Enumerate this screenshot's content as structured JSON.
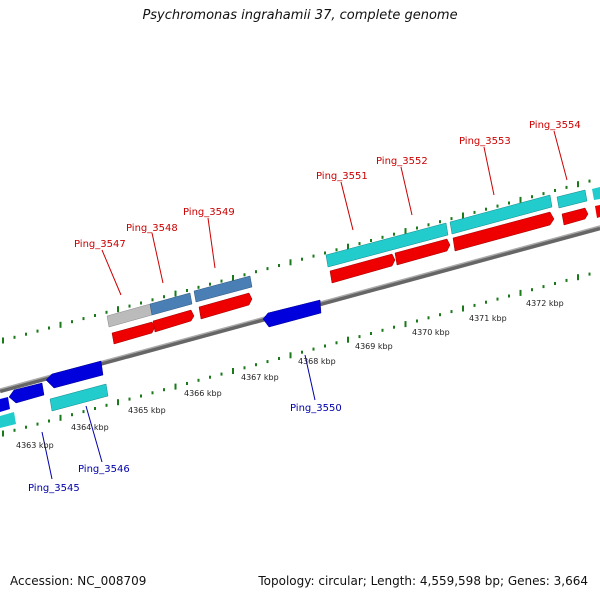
{
  "title": "Psychromonas ingrahamii 37, complete genome",
  "footer": {
    "accession": "Accession: NC_008709",
    "summary": "Topology: circular; Length: 4,559,598 bp; Genes: 3,664"
  },
  "colors": {
    "forward_label": "#cc0000",
    "reverse_label": "#0000aa",
    "cds": "#ee0000",
    "gene_cyan": "#22cccc",
    "gene_steel": "#4a7fb5",
    "gene_gray": "#bbbbbb",
    "gene_blue": "#0000dd",
    "backbone": "#888888",
    "tick": "#1a7a1a"
  },
  "chart_data": {
    "type": "genome-map",
    "kbp_ticks": [
      "4363 kbp",
      "4364 kbp",
      "4365 kbp",
      "4366 kbp",
      "4367 kbp",
      "4368 kbp",
      "4369 kbp",
      "4370 kbp",
      "4371 kbp",
      "4372 kbp"
    ],
    "forward_genes": [
      "Ping_3547",
      "Ping_3548",
      "Ping_3549",
      "Ping_3551",
      "Ping_3552",
      "Ping_3553",
      "Ping_3554"
    ],
    "reverse_genes": [
      "Ping_3545",
      "Ping_3546",
      "Ping_3550"
    ]
  }
}
